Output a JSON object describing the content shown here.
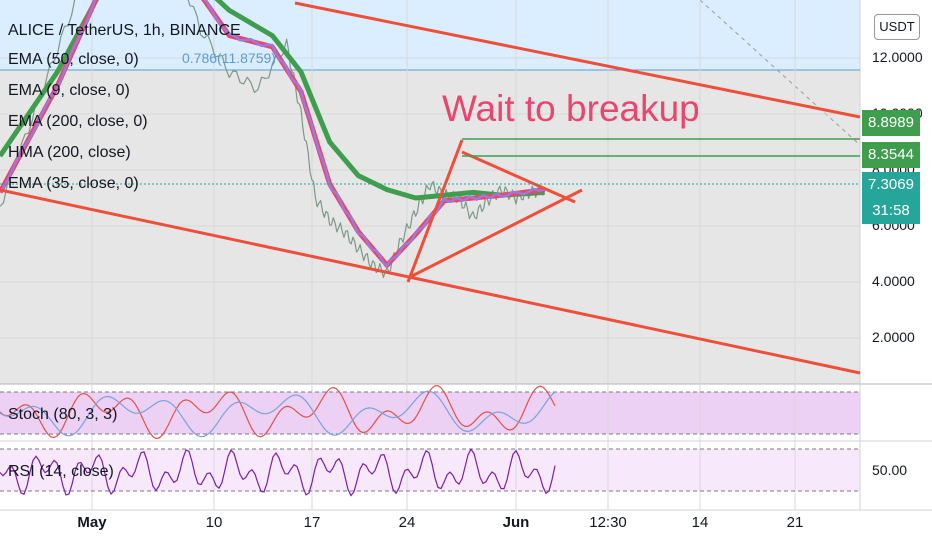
{
  "chart_data": {
    "type": "line",
    "title": "ALICE / TetherUS, 1h, BINANCE",
    "currency_button": "USDT",
    "annotation": "Wait to breakup",
    "fib_label": "0.786(11.8759)",
    "indicators": [
      "EMA (50, close, 0)",
      "EMA (9, close, 0)",
      "EMA (200, close, 0)",
      "HMA (200, close)",
      "EMA (35, close, 0)"
    ],
    "x_ticks": [
      "May",
      "10",
      "17",
      "24",
      "Jun",
      "12:30",
      "14",
      "21"
    ],
    "x_range": [
      "2021-04-27",
      "2021-06-26"
    ],
    "y_ticks": [
      12.0,
      10.0,
      8.0,
      6.0,
      4.0,
      2.0
    ],
    "y_tick_labels": [
      "12.0000",
      "10.0000",
      "8.0000",
      "6.0000",
      "4.0000",
      "2.0000"
    ],
    "ylim": [
      0.3,
      18.0
    ],
    "current_price": "7.3069",
    "countdown": "31:58",
    "level_labels": [
      "8.8989",
      "8.3544"
    ],
    "grid": true,
    "price_series": {
      "x": [
        "2021-04-27",
        "2021-04-29",
        "2021-05-01",
        "2021-05-03",
        "2021-05-05",
        "2021-05-07",
        "2021-05-09",
        "2021-05-11",
        "2021-05-13",
        "2021-05-15",
        "2021-05-17",
        "2021-05-18",
        "2021-05-19",
        "2021-05-20",
        "2021-05-21",
        "2021-05-22",
        "2021-05-23",
        "2021-05-24",
        "2021-05-25",
        "2021-05-26",
        "2021-05-27",
        "2021-05-28",
        "2021-05-29",
        "2021-05-30",
        "2021-05-31",
        "2021-06-01",
        "2021-06-02",
        "2021-06-03",
        "2021-06-04"
      ],
      "y": [
        6.7,
        9.5,
        12.3,
        15.0,
        17.2,
        17.0,
        15.8,
        13.0,
        11.5,
        10.9,
        12.5,
        10.0,
        7.0,
        6.2,
        5.8,
        5.2,
        4.6,
        4.3,
        5.5,
        6.5,
        7.5,
        7.1,
        7.0,
        6.3,
        6.9,
        7.3,
        7.0,
        7.2,
        7.3
      ]
    },
    "ema50": {
      "x": [
        "2021-04-27",
        "2021-05-01",
        "2021-05-05",
        "2021-05-09",
        "2021-05-13",
        "2021-05-16",
        "2021-05-18",
        "2021-05-20",
        "2021-05-22",
        "2021-05-24",
        "2021-05-26",
        "2021-05-28",
        "2021-05-30",
        "2021-06-01",
        "2021-06-04"
      ],
      "y": [
        8.5,
        11.5,
        15.3,
        15.6,
        13.7,
        12.8,
        11.5,
        9.0,
        7.8,
        7.3,
        7.0,
        7.1,
        7.2,
        7.1,
        7.2
      ]
    },
    "hma200": {
      "x": [
        "2021-04-27",
        "2021-05-01",
        "2021-05-05",
        "2021-05-09",
        "2021-05-13",
        "2021-05-16",
        "2021-05-18",
        "2021-05-20",
        "2021-05-22",
        "2021-05-24",
        "2021-05-26",
        "2021-05-28",
        "2021-05-30",
        "2021-06-01",
        "2021-06-04"
      ],
      "y": [
        7.2,
        11.0,
        15.6,
        15.7,
        12.8,
        12.4,
        10.8,
        7.5,
        5.8,
        4.6,
        5.7,
        6.9,
        7.0,
        7.1,
        7.3
      ]
    },
    "stoch": {
      "label": "Stoch (80, 3, 3)",
      "upper": 80,
      "lower": 20
    },
    "rsi": {
      "label": "RSI (14, close)",
      "tick": "50.00",
      "upper": 70,
      "lower": 30
    }
  },
  "colors": {
    "price_zone": "#dbeeff",
    "chart_bg": "#e6e6e6",
    "trend_line": "#ef4f3a",
    "ema50": "#3f9e4e",
    "hma": "#e8466e",
    "ema9": "#9b7ad8",
    "badge_teal": "#26a69a",
    "badge_green": "#3f9e4e",
    "stoch_band": "#ecd1f5",
    "rsi_line": "#7b1fa2"
  }
}
